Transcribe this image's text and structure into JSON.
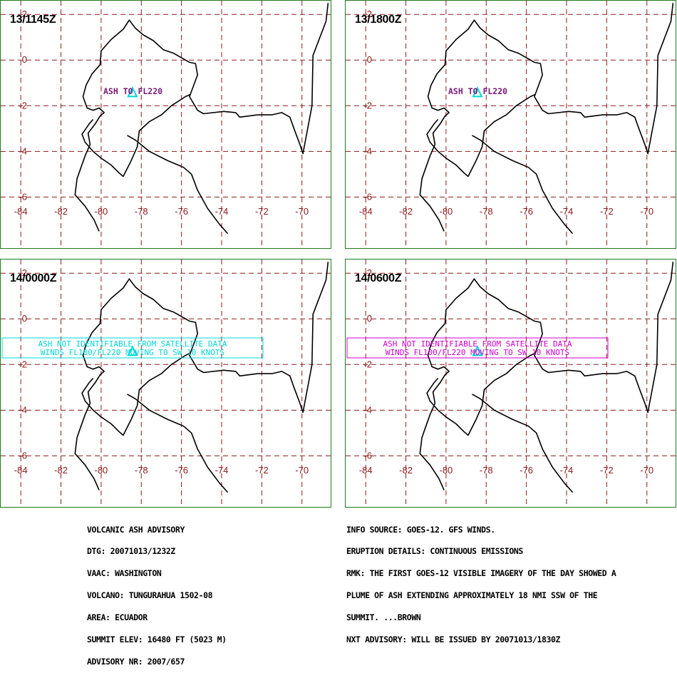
{
  "panels": [
    {
      "time": "13/1145Z",
      "label_lines": [
        "ASH TO FL220"
      ],
      "label_color": "#7a1a7a",
      "box": false
    },
    {
      "time": "13/1800Z",
      "label_lines": [
        "ASH TO FL220"
      ],
      "label_color": "#7a1a7a",
      "box": false
    },
    {
      "time": "14/0000Z",
      "label_lines": [
        "ASH NOT IDENTIFIABLE FROM SATELLITE DATA",
        "WINDS FL100/FL220 MOVING TO SW 10 KNOTS"
      ],
      "label_color": "#00d8d8",
      "box": true
    },
    {
      "time": "14/0600Z",
      "label_lines": [
        "ASH NOT IDENTIFIABLE FROM SATELLITE DATA",
        "WINDS FL100/FL220 MOVING TO SW 10 KNOTS"
      ],
      "label_color": "#d000d0",
      "box": true
    }
  ],
  "map": {
    "lon_ticks": [
      "-84",
      "-82",
      "-80",
      "-78",
      "-76",
      "-74",
      "-72",
      "-70"
    ],
    "lat_ticks": [
      "2",
      "0",
      "-2",
      "-4",
      "-6"
    ],
    "lon_range": [
      -85,
      -68.5
    ],
    "lat_range": [
      2.6,
      -8.3
    ],
    "volcano": {
      "lon": -78.44,
      "lat": -1.47
    },
    "colors": {
      "grid": "#8b1a1a",
      "coast": "#000000",
      "volcano": "#00d8d8",
      "frame": "#1f7a1f"
    }
  },
  "advisory_left": [
    "VOLCANIC ASH ADVISORY",
    "DTG: 20071013/1232Z",
    "VAAC: WASHINGTON",
    "VOLCANO: TUNGURAHUA 1502-08",
    "AREA: ECUADOR",
    "SUMMIT ELEV: 16480 FT (5023 M)",
    "ADVISORY NR: 2007/657"
  ],
  "advisory_right": [
    "INFO SOURCE: GOES-12. GFS WINDS.",
    "ERUPTION DETAILS: CONTINUOUS EMISSIONS",
    "RMK: THE FIRST GOES-12 VISIBLE IMAGERY OF THE DAY SHOWED A",
    "PLUME OF ASH EXTENDING APPROXIMATELY 18 NMI SSW OF THE",
    "SUMMIT. ...BROWN",
    "NXT ADVISORY: WILL BE ISSUED BY 20071013/1830Z"
  ]
}
